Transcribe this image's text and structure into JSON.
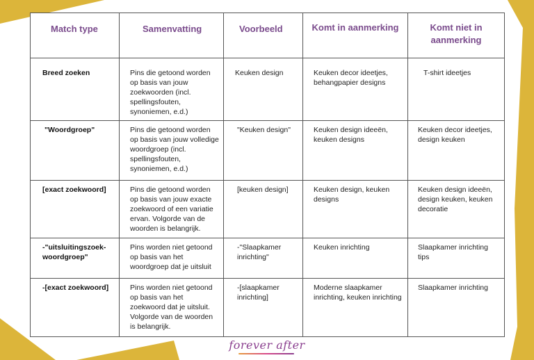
{
  "colors": {
    "accent_yellow": "#dcb53a",
    "heading_purple": "#7a4b8c",
    "border": "#555555"
  },
  "table": {
    "headers": [
      "Match type",
      "Samenvatting",
      "Voorbeeld",
      "Komt in aanmerking",
      "Komt niet in aanmerking"
    ],
    "rows": [
      {
        "type": "Breed zoeken",
        "summary": "Pins die getoond worden op basis van jouw zoekwoorden (incl. spellingsfouten, synoniemen, e.d.)",
        "example": "Keuken design",
        "eligible": "Keuken decor ideetjes, behangpapier designs",
        "not_eligible": "T-shirt ideetjes"
      },
      {
        "type": "\"Woordgroep\"",
        "summary": "Pins die getoond worden op basis van jouw volledige woordgroep (incl. spellingsfouten, synoniemen, e.d.)",
        "example": "\"Keuken design\"",
        "eligible": "Keuken design ideeën, keuken designs",
        "not_eligible": "Keuken decor ideetjes, design keuken"
      },
      {
        "type": "[exact zoekwoord]",
        "summary": "Pins die getoond worden op basis van jouw exacte zoekwoord of een variatie ervan. Volgorde van de woorden is belangrijk.",
        "example": "[keuken design]",
        "eligible": "Keuken design, keuken designs",
        "not_eligible": "Keuken design ideeën, design keuken, keuken decoratie"
      },
      {
        "type": "-\"uitsluitingszoek-woordgroep\"",
        "summary": "Pins worden niet getoond op basis van het woordgroep dat je uitsluit",
        "example": "-\"Slaapkamer inrichting\"",
        "eligible": "Keuken inrichting",
        "not_eligible": "Slaapkamer inrichting tips"
      },
      {
        "type": "-[exact zoekwoord]",
        "summary": "Pins worden niet getoond op basis van het zoekwoord dat je uitsluit. Volgorde van de woorden is belangrijk.",
        "example": "-[slaapkamer inrichting]",
        "eligible": "Moderne slaapkamer inrichting, keuken inrichting",
        "not_eligible": "Slaapkamer inrichting"
      }
    ]
  },
  "footer": {
    "logo_text": "forever after"
  }
}
